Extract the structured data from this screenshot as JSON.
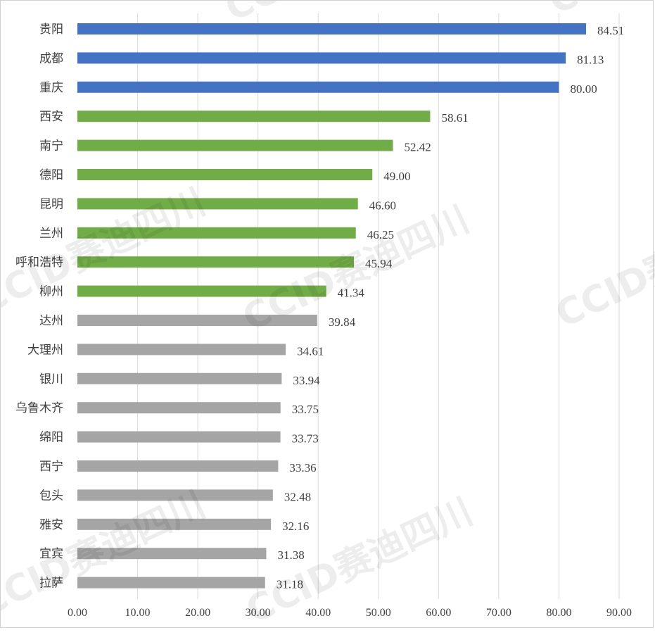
{
  "chart_data": {
    "type": "bar",
    "orientation": "horizontal",
    "title": "",
    "xlabel": "",
    "ylabel": "",
    "xlim": [
      0,
      90
    ],
    "x_ticks": [
      "0.00",
      "10.00",
      "20.00",
      "30.00",
      "40.00",
      "50.00",
      "60.00",
      "70.00",
      "80.00",
      "90.00"
    ],
    "grid": "vertical",
    "categories": [
      "贵阳",
      "成都",
      "重庆",
      "西安",
      "南宁",
      "德阳",
      "昆明",
      "兰州",
      "呼和浩特",
      "柳州",
      "达州",
      "大理州",
      "银川",
      "乌鲁木齐",
      "绵阳",
      "西宁",
      "包头",
      "雅安",
      "宜宾",
      "拉萨"
    ],
    "values": [
      84.51,
      81.13,
      80.0,
      58.61,
      52.42,
      49.0,
      46.6,
      46.25,
      45.94,
      41.34,
      39.84,
      34.61,
      33.94,
      33.75,
      33.73,
      33.36,
      32.48,
      32.16,
      31.38,
      31.18
    ],
    "value_labels": [
      "84.51",
      "81.13",
      "80.00",
      "58.61",
      "52.42",
      "49.00",
      "46.60",
      "46.25",
      "45.94",
      "41.34",
      "39.84",
      "34.61",
      "33.94",
      "33.75",
      "33.73",
      "33.36",
      "32.48",
      "32.16",
      "31.38",
      "31.18"
    ],
    "tiers": [
      "blue",
      "blue",
      "blue",
      "green",
      "green",
      "green",
      "green",
      "green",
      "green",
      "green",
      "gray",
      "gray",
      "gray",
      "gray",
      "gray",
      "gray",
      "gray",
      "gray",
      "gray",
      "gray"
    ],
    "colors": {
      "blue": "#4472C4",
      "green": "#70AD47",
      "gray": "#A5A5A5"
    },
    "watermark": "CCID赛迪四川"
  }
}
